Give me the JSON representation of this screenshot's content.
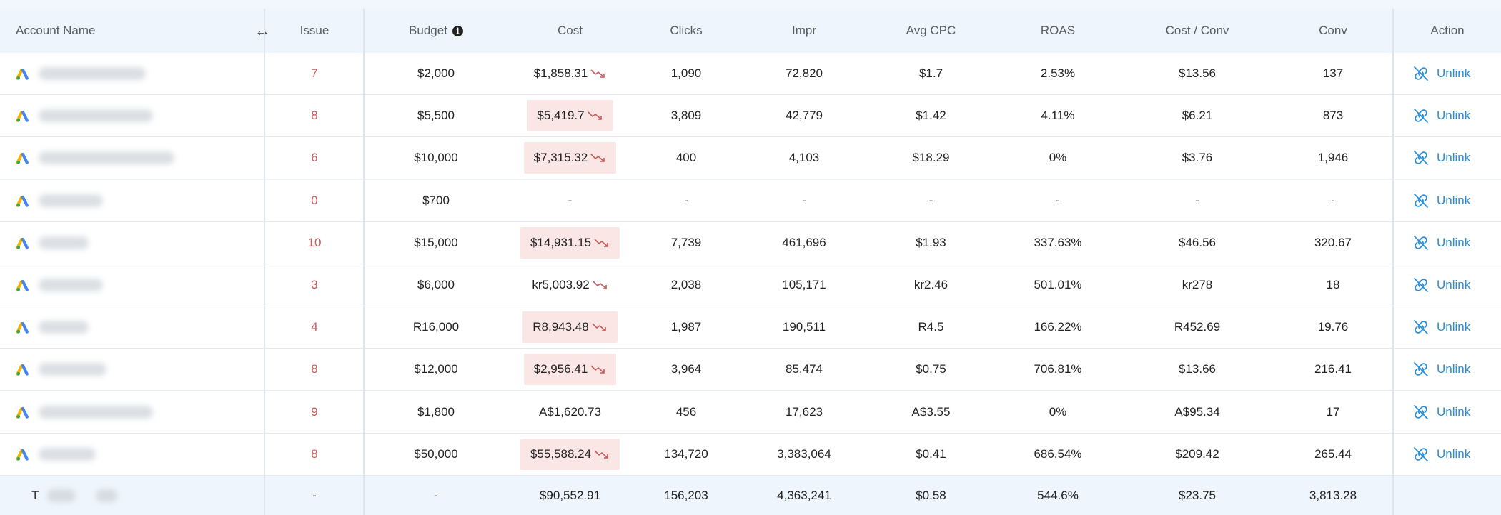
{
  "header": {
    "account_name": "Account Name",
    "issue": "Issue",
    "budget": "Budget",
    "cost": "Cost",
    "clicks": "Clicks",
    "impr": "Impr",
    "avg_cpc": "Avg CPC",
    "roas": "ROAS",
    "cost_conv": "Cost / Conv",
    "conv": "Conv",
    "action": "Action"
  },
  "icons": {
    "resize": "resize-horizontal-icon",
    "info": "info-icon",
    "logo": "google-ads-logo",
    "trend": "trend-down-icon",
    "unlink": "unlink-icon"
  },
  "colors": {
    "issue": "#c75a5a",
    "cost_highlight": "#fbe6e6",
    "trend": "#c75a5a",
    "link": "#2a8ed8"
  },
  "rows": [
    {
      "issue": "7",
      "budget": "$2,000",
      "cost": "$1,858.31",
      "cost_highlight": false,
      "trend": true,
      "clicks": "1,090",
      "impr": "72,820",
      "avg_cpc": "$1.7",
      "roas": "2.53%",
      "cost_conv": "$13.56",
      "conv": "137",
      "action": "Unlink"
    },
    {
      "issue": "8",
      "budget": "$5,500",
      "cost": "$5,419.7",
      "cost_highlight": true,
      "trend": true,
      "clicks": "3,809",
      "impr": "42,779",
      "avg_cpc": "$1.42",
      "roas": "4.11%",
      "cost_conv": "$6.21",
      "conv": "873",
      "action": "Unlink"
    },
    {
      "issue": "6",
      "budget": "$10,000",
      "cost": "$7,315.32",
      "cost_highlight": true,
      "trend": true,
      "clicks": "400",
      "impr": "4,103",
      "avg_cpc": "$18.29",
      "roas": "0%",
      "cost_conv": "$3.76",
      "conv": "1,946",
      "action": "Unlink"
    },
    {
      "issue": "0",
      "budget": "$700",
      "cost": "-",
      "cost_highlight": false,
      "trend": false,
      "clicks": "-",
      "impr": "-",
      "avg_cpc": "-",
      "roas": "-",
      "cost_conv": "-",
      "conv": "-",
      "action": "Unlink"
    },
    {
      "issue": "10",
      "budget": "$15,000",
      "cost": "$14,931.15",
      "cost_highlight": true,
      "trend": true,
      "clicks": "7,739",
      "impr": "461,696",
      "avg_cpc": "$1.93",
      "roas": "337.63%",
      "cost_conv": "$46.56",
      "conv": "320.67",
      "action": "Unlink"
    },
    {
      "issue": "3",
      "budget": "$6,000",
      "cost": "kr5,003.92",
      "cost_highlight": false,
      "trend": true,
      "clicks": "2,038",
      "impr": "105,171",
      "avg_cpc": "kr2.46",
      "roas": "501.01%",
      "cost_conv": "kr278",
      "conv": "18",
      "action": "Unlink"
    },
    {
      "issue": "4",
      "budget": "R16,000",
      "cost": "R8,943.48",
      "cost_highlight": true,
      "trend": true,
      "clicks": "1,987",
      "impr": "190,511",
      "avg_cpc": "R4.5",
      "roas": "166.22%",
      "cost_conv": "R452.69",
      "conv": "19.76",
      "action": "Unlink"
    },
    {
      "issue": "8",
      "budget": "$12,000",
      "cost": "$2,956.41",
      "cost_highlight": true,
      "trend": true,
      "clicks": "3,964",
      "impr": "85,474",
      "avg_cpc": "$0.75",
      "roas": "706.81%",
      "cost_conv": "$13.66",
      "conv": "216.41",
      "action": "Unlink"
    },
    {
      "issue": "9",
      "budget": "$1,800",
      "cost": "A$1,620.73",
      "cost_highlight": false,
      "trend": false,
      "clicks": "456",
      "impr": "17,623",
      "avg_cpc": "A$3.55",
      "roas": "0%",
      "cost_conv": "A$95.34",
      "conv": "17",
      "action": "Unlink"
    },
    {
      "issue": "8",
      "budget": "$50,000",
      "cost": "$55,588.24",
      "cost_highlight": true,
      "trend": true,
      "clicks": "134,720",
      "impr": "3,383,064",
      "avg_cpc": "$0.41",
      "roas": "686.54%",
      "cost_conv": "$209.42",
      "conv": "265.44",
      "action": "Unlink"
    }
  ],
  "total": {
    "label": "T",
    "issue": "-",
    "budget": "-",
    "cost": "$90,552.91",
    "clicks": "156,203",
    "impr": "4,363,241",
    "avg_cpc": "$0.58",
    "roas": "544.6%",
    "cost_conv": "$23.75",
    "conv": "3,813.28"
  }
}
